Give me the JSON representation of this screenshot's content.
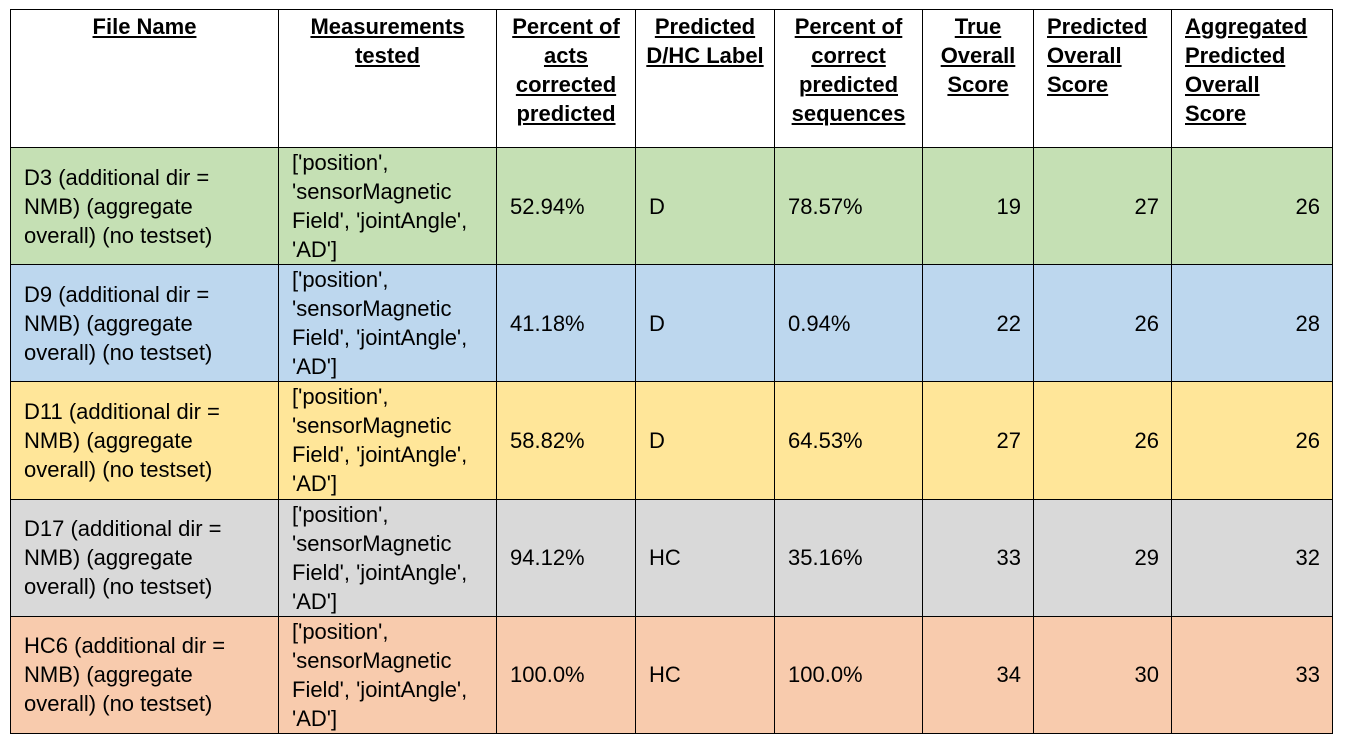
{
  "chart_data": {
    "type": "table",
    "columns": [
      "File Name",
      "Measurements tested",
      "Percent of acts corrected predicted",
      "Predicted D/HC Label",
      "Percent of correct predicted sequences",
      "True Overall Score",
      "Predicted Overall Score",
      "Aggregated Predicted Overall Score"
    ],
    "rows": [
      {
        "file_name": "D3 (additional dir = NMB) (aggregate overall) (no testset)",
        "measurements": "['position', 'sensorMagnetic Field', 'jointAngle', 'AD']",
        "percent_acts": "52.94%",
        "label": "D",
        "percent_sequences": "78.57%",
        "true_score": 19,
        "predicted_score": 27,
        "aggregated_score": 26,
        "color": "#c5e0b4"
      },
      {
        "file_name": "D9 (additional dir = NMB) (aggregate overall) (no testset)",
        "measurements": "['position', 'sensorMagnetic Field', 'jointAngle', 'AD']",
        "percent_acts": "41.18%",
        "label": "D",
        "percent_sequences": "0.94%",
        "true_score": 22,
        "predicted_score": 26,
        "aggregated_score": 28,
        "color": "#bdd7ee"
      },
      {
        "file_name": "D11 (additional dir = NMB) (aggregate overall) (no testset)",
        "measurements": "['position', 'sensorMagnetic Field', 'jointAngle', 'AD']",
        "percent_acts": "58.82%",
        "label": "D",
        "percent_sequences": "64.53%",
        "true_score": 27,
        "predicted_score": 26,
        "aggregated_score": 26,
        "color": "#ffe699"
      },
      {
        "file_name": "D17 (additional dir = NMB) (aggregate overall) (no testset)",
        "measurements": "['position', 'sensorMagnetic Field', 'jointAngle', 'AD']",
        "percent_acts": "94.12%",
        "label": "HC",
        "percent_sequences": "35.16%",
        "true_score": 33,
        "predicted_score": 29,
        "aggregated_score": 32,
        "color": "#d9d9d9"
      },
      {
        "file_name": "HC6 (additional dir = NMB) (aggregate overall) (no testset)",
        "measurements": "['position', 'sensorMagnetic Field', 'jointAngle', 'AD']",
        "percent_acts": "100.0%",
        "label": "HC",
        "percent_sequences": "100.0%",
        "true_score": 34,
        "predicted_score": 30,
        "aggregated_score": 33,
        "color": "#f8cbad"
      }
    ]
  }
}
